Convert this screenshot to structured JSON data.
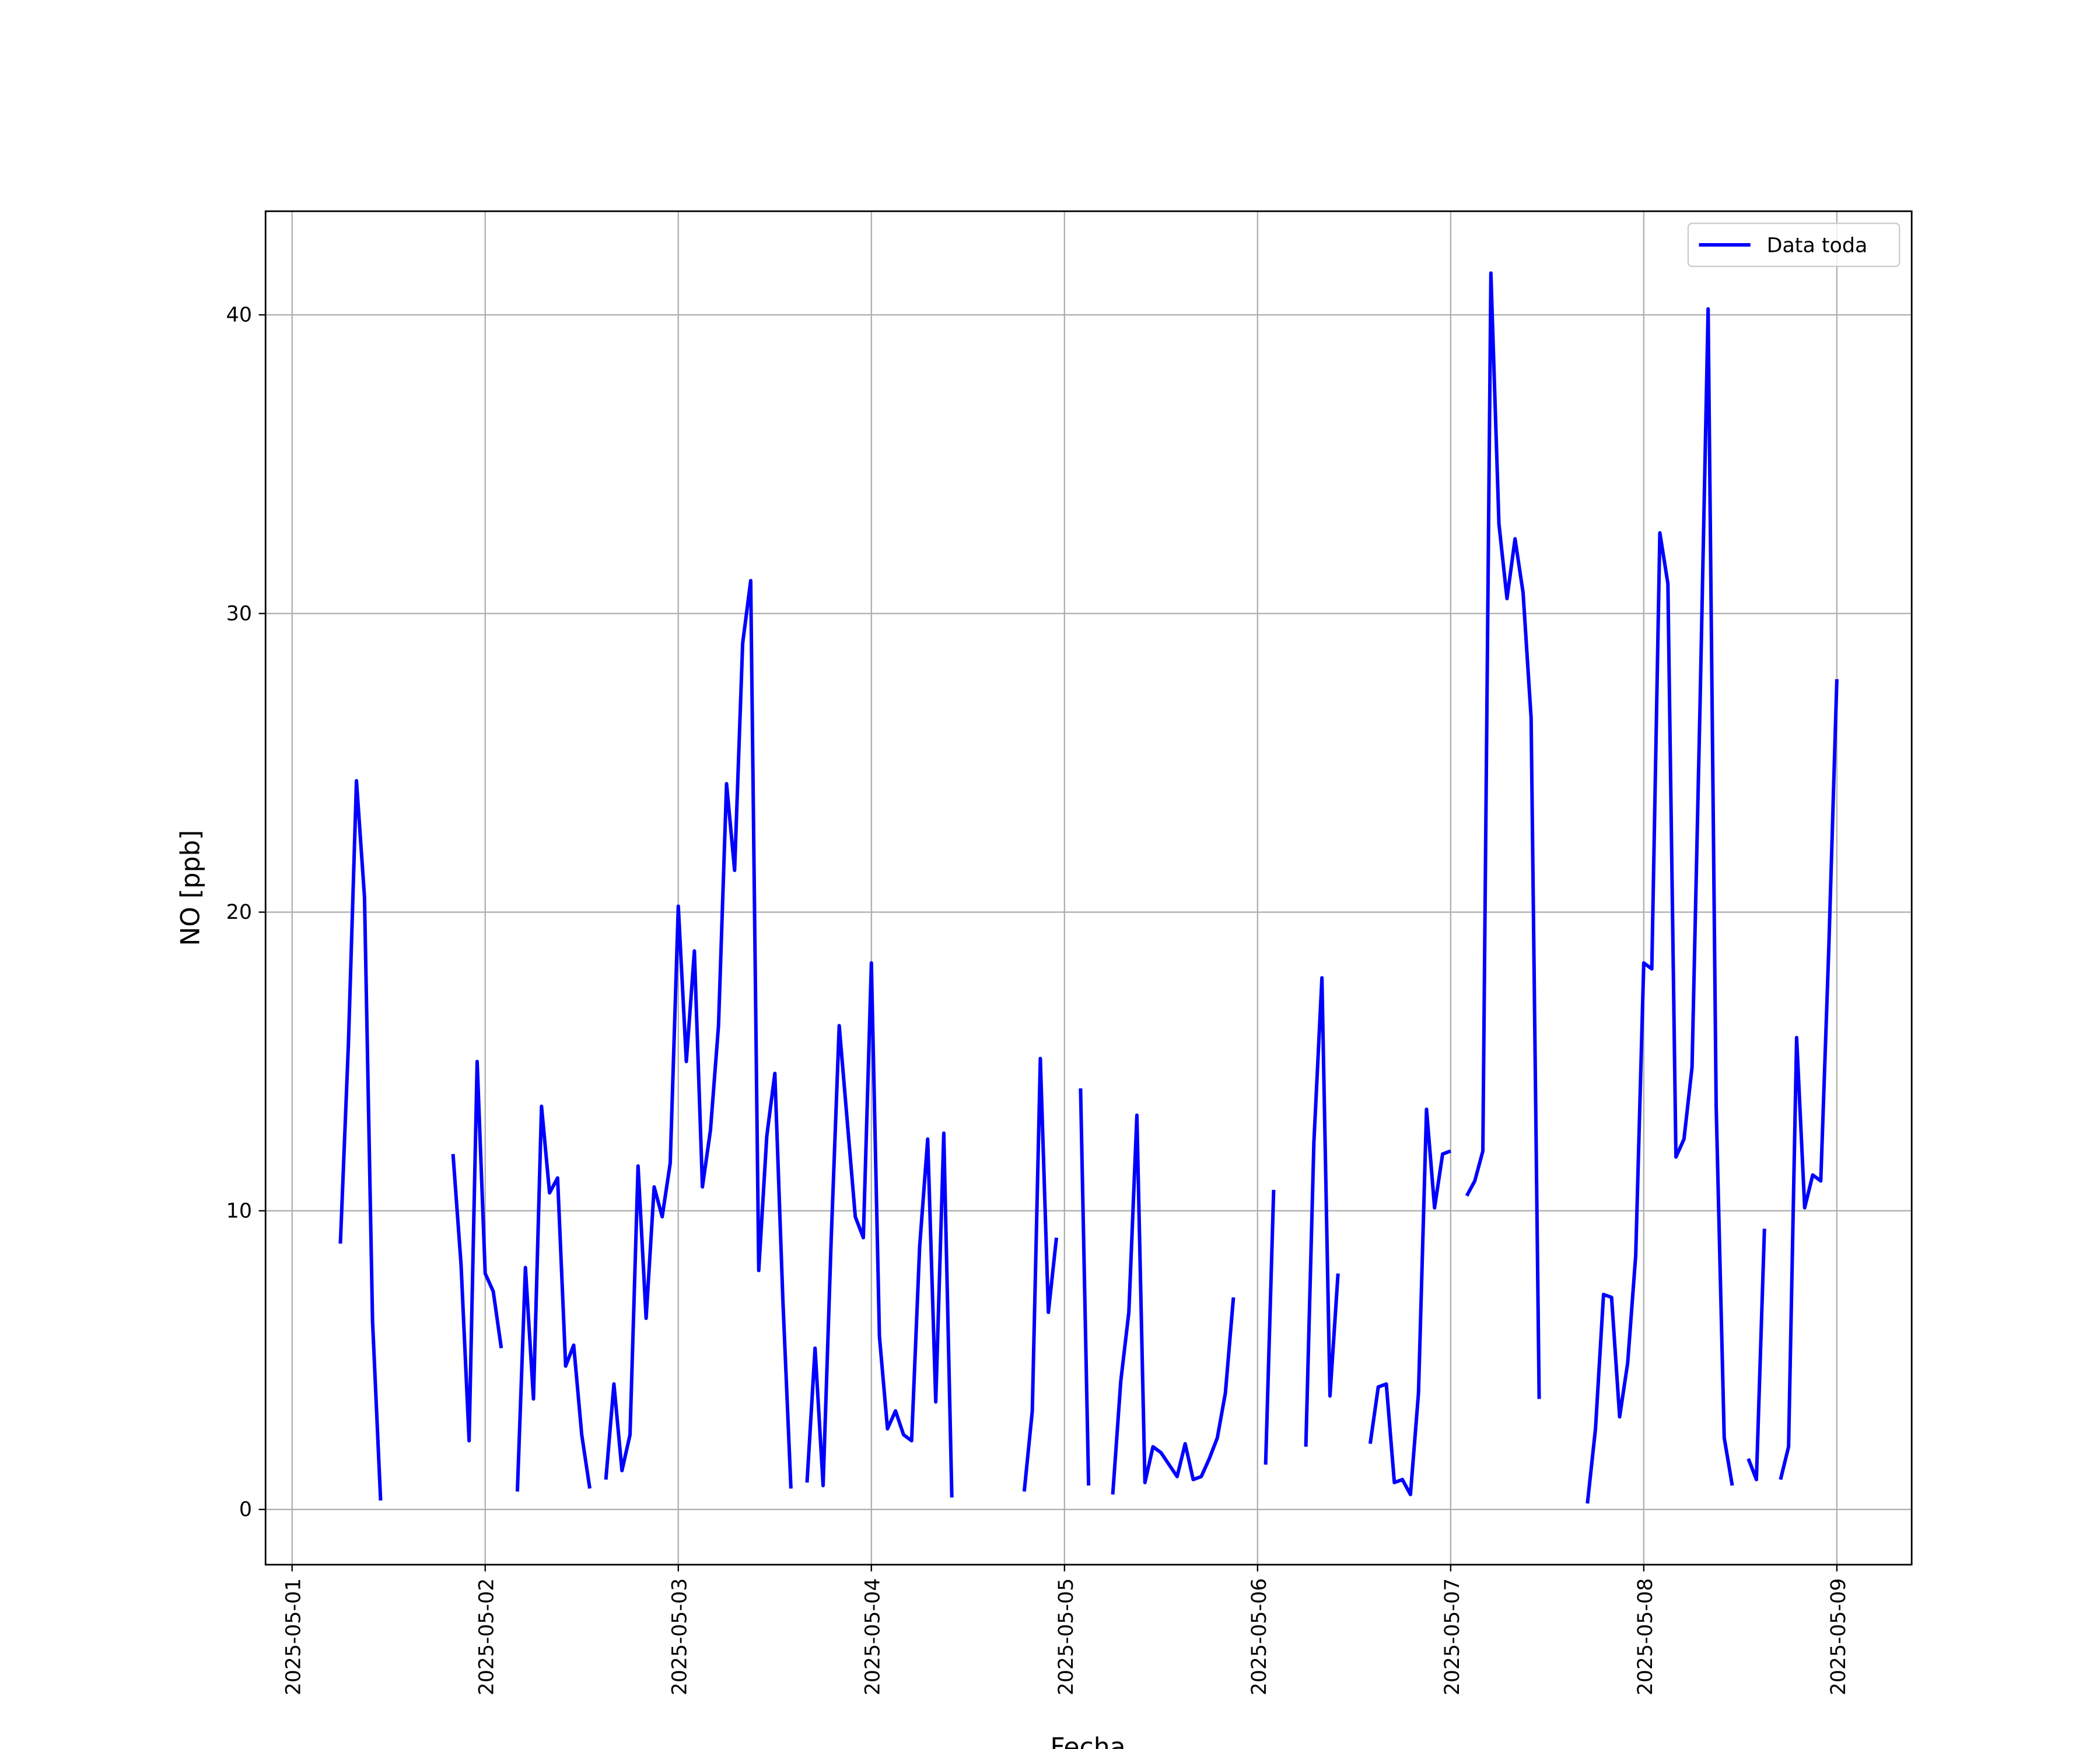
{
  "chart_data": {
    "type": "line",
    "x_label": "Fecha",
    "y_label": "NO [ppb]",
    "legend": "upper right",
    "grid": true,
    "xlim": [
      "2025-04-30T20:42",
      "2025-05-09T09:18"
    ],
    "xticks": [
      "2025-05-01",
      "2025-05-02",
      "2025-05-03",
      "2025-05-04",
      "2025-05-05",
      "2025-05-06",
      "2025-05-07",
      "2025-05-08",
      "2025-05-09"
    ],
    "ylim": [
      -1.85,
      43.47
    ],
    "yticks": [
      0,
      10,
      20,
      30,
      40
    ],
    "x": [
      "2025-05-01T06:00",
      "2025-05-01T07:00",
      "2025-05-01T08:00",
      "2025-05-01T09:00",
      "2025-05-01T10:00",
      "2025-05-01T11:00",
      "2025-05-01T12:00",
      "2025-05-01T20:00",
      "2025-05-01T21:00",
      "2025-05-01T22:00",
      "2025-05-01T23:00",
      "2025-05-02T00:00",
      "2025-05-02T01:00",
      "2025-05-02T02:00",
      "2025-05-02T03:00",
      "2025-05-02T04:00",
      "2025-05-02T05:00",
      "2025-05-02T06:00",
      "2025-05-02T07:00",
      "2025-05-02T08:00",
      "2025-05-02T09:00",
      "2025-05-02T10:00",
      "2025-05-02T11:00",
      "2025-05-02T12:00",
      "2025-05-02T13:00",
      "2025-05-02T14:00",
      "2025-05-02T15:00",
      "2025-05-02T16:00",
      "2025-05-02T17:00",
      "2025-05-02T18:00",
      "2025-05-02T19:00",
      "2025-05-02T20:00",
      "2025-05-02T21:00",
      "2025-05-02T22:00",
      "2025-05-02T23:00",
      "2025-05-03T00:00",
      "2025-05-03T01:00",
      "2025-05-03T02:00",
      "2025-05-03T03:00",
      "2025-05-03T04:00",
      "2025-05-03T05:00",
      "2025-05-03T06:00",
      "2025-05-03T07:00",
      "2025-05-03T08:00",
      "2025-05-03T09:00",
      "2025-05-03T10:00",
      "2025-05-03T11:00",
      "2025-05-03T12:00",
      "2025-05-03T13:00",
      "2025-05-03T14:00",
      "2025-05-03T15:00",
      "2025-05-03T16:00",
      "2025-05-03T17:00",
      "2025-05-03T18:00",
      "2025-05-03T19:00",
      "2025-05-03T20:00",
      "2025-05-03T21:00",
      "2025-05-03T22:00",
      "2025-05-03T23:00",
      "2025-05-04T00:00",
      "2025-05-04T01:00",
      "2025-05-04T02:00",
      "2025-05-04T03:00",
      "2025-05-04T04:00",
      "2025-05-04T05:00",
      "2025-05-04T06:00",
      "2025-05-04T07:00",
      "2025-05-04T08:00",
      "2025-05-04T09:00",
      "2025-05-04T10:00",
      "2025-05-04T11:00",
      "2025-05-04T19:00",
      "2025-05-04T20:00",
      "2025-05-04T21:00",
      "2025-05-04T22:00",
      "2025-05-04T23:00",
      "2025-05-05T00:00",
      "2025-05-05T02:00",
      "2025-05-05T03:00",
      "2025-05-05T04:00",
      "2025-05-05T06:00",
      "2025-05-05T07:00",
      "2025-05-05T08:00",
      "2025-05-05T09:00",
      "2025-05-05T10:00",
      "2025-05-05T11:00",
      "2025-05-05T12:00",
      "2025-05-05T13:00",
      "2025-05-05T14:00",
      "2025-05-05T15:00",
      "2025-05-05T16:00",
      "2025-05-05T17:00",
      "2025-05-05T18:00",
      "2025-05-05T19:00",
      "2025-05-05T20:00",
      "2025-05-05T21:00",
      "2025-05-05T22:00",
      "2025-05-06T01:00",
      "2025-05-06T02:00",
      "2025-05-06T03:00",
      "2025-05-06T06:00",
      "2025-05-06T07:00",
      "2025-05-06T08:00",
      "2025-05-06T09:00",
      "2025-05-06T10:00",
      "2025-05-06T11:00",
      "2025-05-06T14:00",
      "2025-05-06T15:00",
      "2025-05-06T16:00",
      "2025-05-06T17:00",
      "2025-05-06T18:00",
      "2025-05-06T19:00",
      "2025-05-06T20:00",
      "2025-05-06T21:00",
      "2025-05-06T22:00",
      "2025-05-06T23:00",
      "2025-05-07T00:00",
      "2025-05-07T01:00",
      "2025-05-07T02:00",
      "2025-05-07T03:00",
      "2025-05-07T04:00",
      "2025-05-07T05:00",
      "2025-05-07T06:00",
      "2025-05-07T07:00",
      "2025-05-07T08:00",
      "2025-05-07T09:00",
      "2025-05-07T10:00",
      "2025-05-07T11:00",
      "2025-05-07T12:00",
      "2025-05-07T17:00",
      "2025-05-07T18:00",
      "2025-05-07T19:00",
      "2025-05-07T20:00",
      "2025-05-07T21:00",
      "2025-05-07T22:00",
      "2025-05-07T23:00",
      "2025-05-08T00:00",
      "2025-05-08T01:00",
      "2025-05-08T02:00",
      "2025-05-08T03:00",
      "2025-05-08T04:00",
      "2025-05-08T05:00",
      "2025-05-08T06:00",
      "2025-05-08T07:00",
      "2025-05-08T08:00",
      "2025-05-08T09:00",
      "2025-05-08T10:00",
      "2025-05-08T11:00",
      "2025-05-08T12:00",
      "2025-05-08T13:00",
      "2025-05-08T14:00",
      "2025-05-08T15:00",
      "2025-05-08T16:00",
      "2025-05-08T17:00",
      "2025-05-08T18:00",
      "2025-05-08T19:00",
      "2025-05-08T20:00",
      "2025-05-08T21:00",
      "2025-05-08T22:00",
      "2025-05-08T23:00",
      "2025-05-09T00:00"
    ],
    "series": [
      {
        "name": "Data toda",
        "color": "#0000ff",
        "values": [
          8.9,
          15.6,
          24.4,
          20.5,
          6.3,
          0.3,
          null,
          11.9,
          8.2,
          2.3,
          15.0,
          7.9,
          7.3,
          5.4,
          null,
          0.6,
          8.1,
          3.7,
          13.5,
          10.6,
          11.1,
          4.8,
          5.5,
          2.5,
          0.7,
          null,
          1.0,
          4.2,
          1.3,
          2.5,
          11.5,
          6.4,
          10.8,
          9.8,
          11.6,
          20.2,
          15.0,
          18.7,
          10.8,
          12.7,
          16.2,
          24.3,
          21.4,
          29.0,
          31.1,
          8.0,
          12.5,
          14.6,
          7.0,
          0.7,
          null,
          0.9,
          5.4,
          0.8,
          9.0,
          16.2,
          13.0,
          9.8,
          9.1,
          18.3,
          5.8,
          2.7,
          3.3,
          2.5,
          2.3,
          8.8,
          12.4,
          3.6,
          12.6,
          0.4,
          null,
          0.6,
          3.3,
          15.1,
          6.6,
          9.1,
          null,
          14.1,
          0.8,
          null,
          0.5,
          4.3,
          6.6,
          13.2,
          0.9,
          2.1,
          1.9,
          1.5,
          1.1,
          2.2,
          1.0,
          1.1,
          1.7,
          2.4,
          3.9,
          7.1,
          null,
          1.5,
          10.7,
          null,
          2.1,
          12.3,
          17.8,
          3.8,
          7.9,
          null,
          2.2,
          4.1,
          4.2,
          0.9,
          1.0,
          0.5,
          3.9,
          13.4,
          10.1,
          11.9,
          12.0,
          null,
          10.5,
          11.0,
          12.0,
          41.4,
          33.0,
          30.5,
          32.5,
          30.7,
          26.5,
          3.7,
          null,
          0.2,
          2.7,
          7.2,
          7.1,
          3.1,
          4.9,
          8.5,
          18.3,
          18.1,
          32.7,
          31.0,
          11.8,
          12.4,
          14.8,
          27.0,
          40.2,
          13.5,
          2.4,
          0.8,
          null,
          1.7,
          1.0,
          9.4,
          null,
          1.0,
          2.1,
          15.8,
          10.1,
          11.2,
          11.0,
          18.8,
          27.8
        ]
      }
    ]
  }
}
